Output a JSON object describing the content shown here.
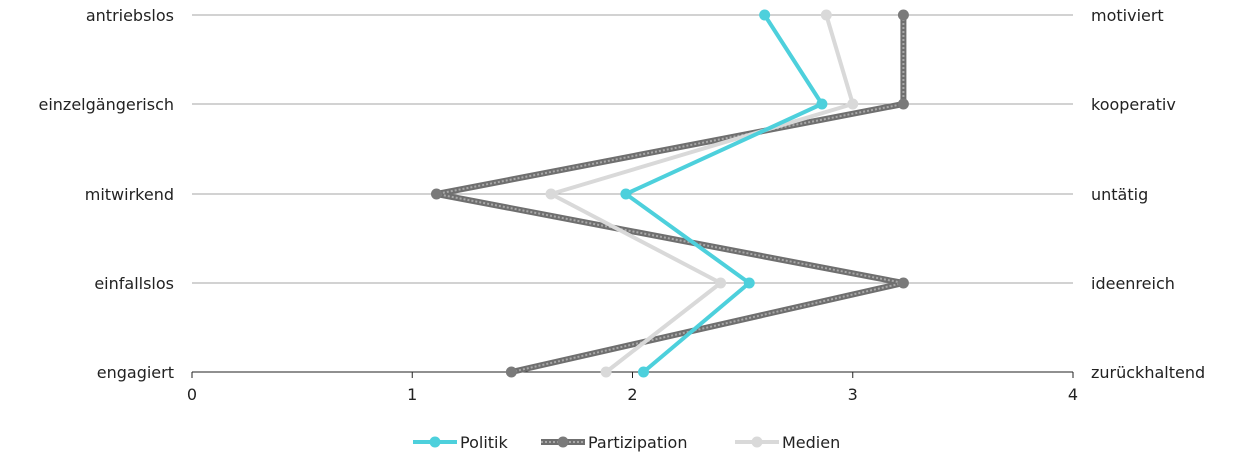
{
  "chart_data": {
    "type": "line",
    "orientation": "horizontal-values",
    "categories_left": [
      "antriebslos",
      "einzelgängerisch",
      "mitwirkend",
      "einfallslos",
      "engagiert"
    ],
    "categories_right": [
      "motiviert",
      "kooperativ",
      "untätig",
      "ideenreich",
      "zurückhaltend"
    ],
    "x_ticks": [
      "0",
      "1",
      "2",
      "3",
      "4"
    ],
    "xlim": [
      0,
      4
    ],
    "grid": true,
    "legend_position": "bottom",
    "series": [
      {
        "name": "Politik",
        "color": "#4dd0dc",
        "marker": "circle",
        "line_style": "solid",
        "values": [
          2.6,
          2.86,
          1.97,
          2.53,
          2.05
        ]
      },
      {
        "name": "Partizipation",
        "color": "#808080",
        "marker": "circle",
        "line_style": "textured",
        "values": [
          3.23,
          3.23,
          1.11,
          3.23,
          1.45
        ]
      },
      {
        "name": "Medien",
        "color": "#d9d9d9",
        "marker": "circle",
        "line_style": "solid",
        "values": [
          2.88,
          3.0,
          1.63,
          2.4,
          1.88
        ]
      }
    ]
  }
}
